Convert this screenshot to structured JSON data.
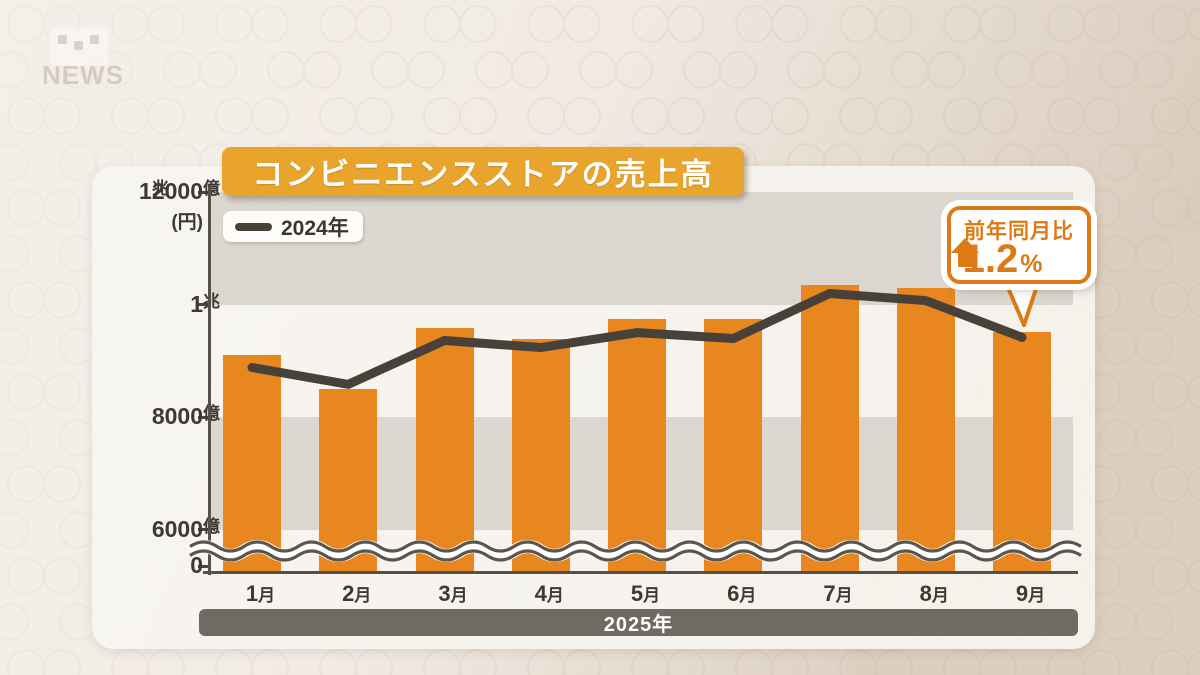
{
  "watermark": {
    "text": "NEWS"
  },
  "title": "コンビニエンスストアの売上高",
  "legend": {
    "label": "2024年"
  },
  "badge": {
    "label": "前年同月比",
    "value": "1.2",
    "unit": "%",
    "direction": "up"
  },
  "x_axis_year": "2025年",
  "chart_data": {
    "type": "bar",
    "title": "コンビニエンスストアの売上高",
    "unit_label": "(円)",
    "categories": [
      "1月",
      "2月",
      "3月",
      "4月",
      "5月",
      "6月",
      "7月",
      "8月",
      "9月"
    ],
    "series": [
      {
        "name": "2025年",
        "type": "bar",
        "values": [
          9100,
          8500,
          9590,
          9390,
          9745,
          9745,
          10355,
          10290,
          9520
        ]
      },
      {
        "name": "2024年",
        "type": "line",
        "values": [
          8880,
          8580,
          9360,
          9235,
          9500,
          9395,
          10195,
          10070,
          9415
        ]
      }
    ],
    "yticks": [
      {
        "value": 12000,
        "label": "1兆2000億"
      },
      {
        "value": 10000,
        "label": "1兆"
      },
      {
        "value": 8000,
        "label": "8000億"
      },
      {
        "value": 6000,
        "label": "6000億"
      },
      {
        "value": 0,
        "label": "0"
      }
    ],
    "ylim": [
      0,
      12000
    ],
    "axis_break": true,
    "band_pairs": [
      [
        12000,
        10000
      ],
      [
        8000,
        6000
      ]
    ],
    "legend_position": "top-left",
    "annotation": "前年同月比 1.2% 上昇（9月）",
    "colors": {
      "bar": "#E8861F",
      "line": "#474139",
      "banner": "#E9A42B",
      "badge": "#DD7A16",
      "axis": "#55504A",
      "band": "#C5C0B8",
      "year_bar": "#6F6B62",
      "panel": "#F7F5F1"
    }
  }
}
